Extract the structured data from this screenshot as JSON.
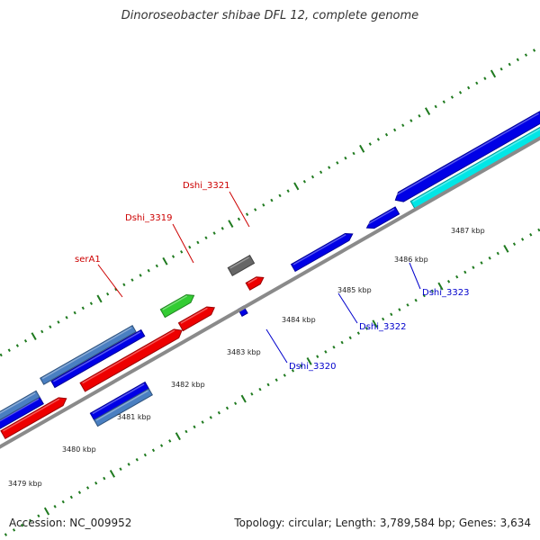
{
  "title": "Dinoroseobacter shibae DFL 12, complete genome",
  "accession": "Accession: NC_009952",
  "stats": "Topology: circular; Length: 3,789,584 bp; Genes: 3,634",
  "colors": {
    "backbone": "#8a8a8a",
    "tick": "#1f7a1f",
    "blue": "#0000e6",
    "steelblue": "#4a7fc1",
    "red": "#ee0000",
    "green": "#33cc33",
    "gray": "#666666",
    "cyan": "#00e6e6",
    "label_red": "#cc0000",
    "label_blue": "#0000cc"
  },
  "scale_labels": [
    "3479 kbp",
    "3480 kbp",
    "3481 kbp",
    "3482 kbp",
    "3483 kbp",
    "3484 kbp",
    "3485 kbp",
    "3486 kbp",
    "3487 kbp"
  ],
  "gene_labels": [
    {
      "text": "serA1",
      "color": "label_red"
    },
    {
      "text": "Dshi_3319",
      "color": "label_red"
    },
    {
      "text": "Dshi_3321",
      "color": "label_red"
    },
    {
      "text": "Dshi_3320",
      "color": "label_blue"
    },
    {
      "text": "Dshi_3322",
      "color": "label_blue"
    },
    {
      "text": "Dshi_3323",
      "color": "label_blue"
    }
  ]
}
